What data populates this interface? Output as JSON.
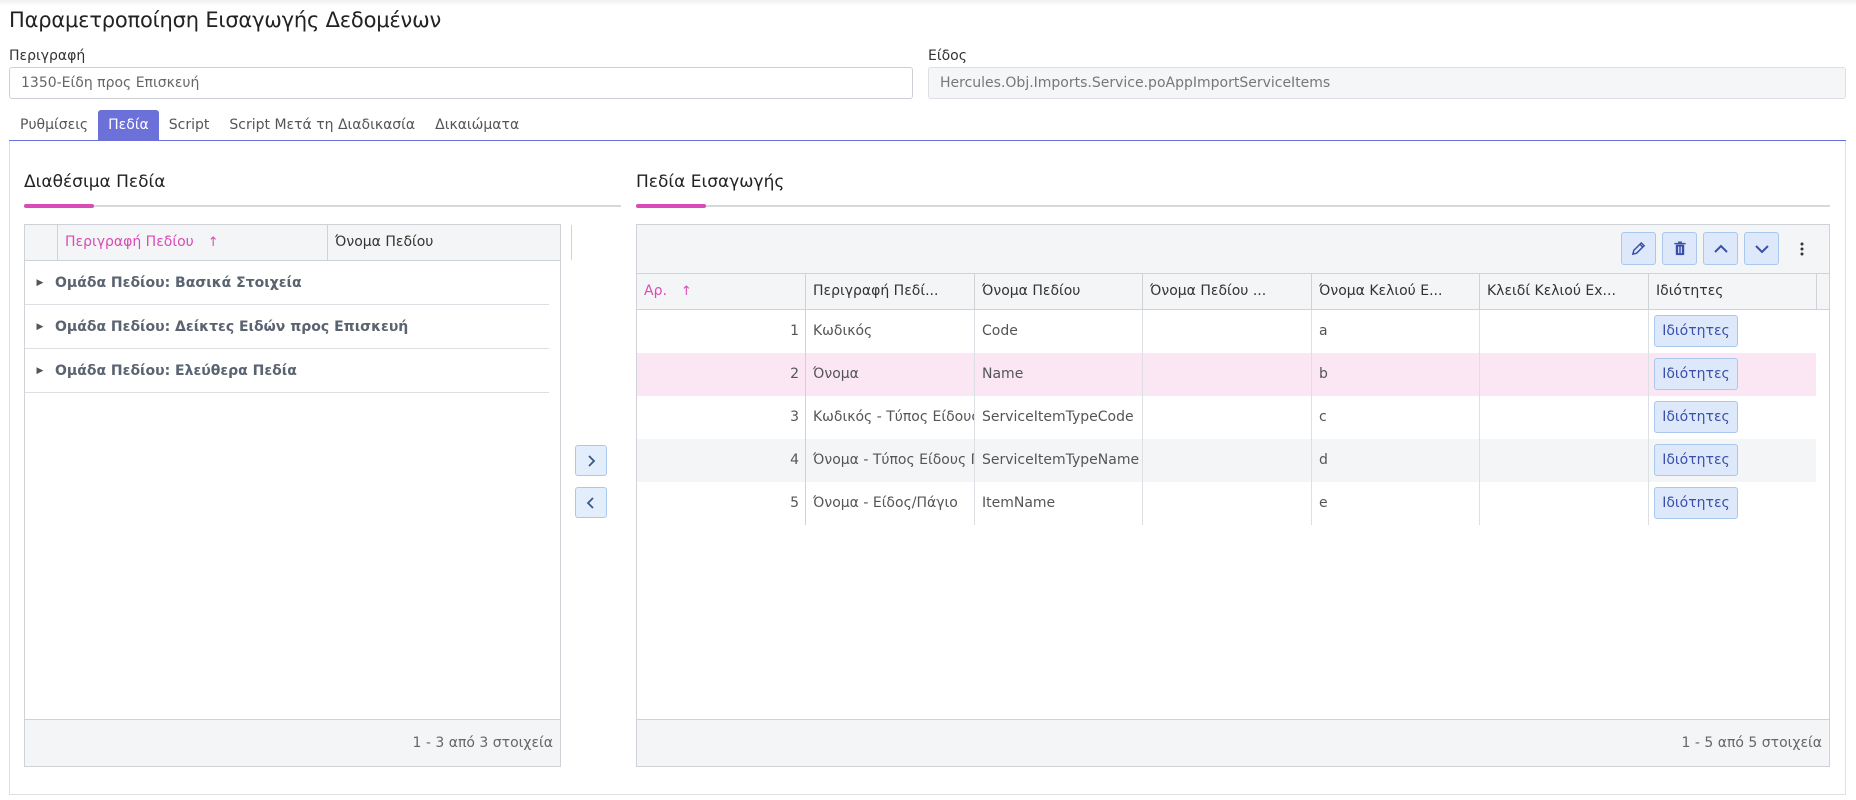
{
  "page": {
    "title": "Παραμετροποίηση Εισαγωγής Δεδομένων"
  },
  "form": {
    "description_label": "Περιγραφή",
    "description_value": "1350-Είδη προς Επισκευή",
    "type_label": "Είδος",
    "type_value": "Hercules.Obj.Imports.Service.poAppImportServiceItems"
  },
  "tabs": [
    {
      "label": "Ρυθμίσεις",
      "active": false
    },
    {
      "label": "Πεδία",
      "active": true
    },
    {
      "label": "Script",
      "active": false
    },
    {
      "label": "Script Μετά τη Διαδικασία",
      "active": false
    },
    {
      "label": "Δικαιώματα",
      "active": false
    }
  ],
  "available": {
    "title": "Διαθέσιμα Πεδία",
    "columns": [
      "Περιγραφή Πεδίου",
      "Όνομα Πεδίου"
    ],
    "sort_arrow": "↑",
    "groups": [
      "Ομάδα Πεδίου: Βασικά Στοιχεία",
      "Ομάδα Πεδίου: Δείκτες Ειδών προς Επισκευή",
      "Ομάδα Πεδίου: Ελεύθερα Πεδία"
    ],
    "footer": "1 - 3 από 3 στοιχεία"
  },
  "imported": {
    "title": "Πεδία Εισαγωγής",
    "columns": [
      "Αρ.",
      "Περιγραφή Πεδί...",
      "Όνομα Πεδίου",
      "Όνομα Πεδίου ...",
      "Όνομα Κελιού Ε...",
      "Κλειδί Κελιού Εx...",
      "Ιδιότητες"
    ],
    "sort_arrow": "↑",
    "rows": [
      {
        "no": "1",
        "desc": "Κωδικός",
        "name": "Code",
        "name2": "",
        "cell": "a",
        "key": "",
        "props": "Ιδιότητες"
      },
      {
        "no": "2",
        "desc": "Όνομα",
        "name": "Name",
        "name2": "",
        "cell": "b",
        "key": "",
        "props": "Ιδιότητες"
      },
      {
        "no": "3",
        "desc": "Κωδικός - Τύπος Είδους Π",
        "name": "ServiceItemTypeCode",
        "name2": "",
        "cell": "c",
        "key": "",
        "props": "Ιδιότητες"
      },
      {
        "no": "4",
        "desc": "Όνομα - Τύπος Είδους Πρ",
        "name": "ServiceItemTypeName",
        "name2": "",
        "cell": "d",
        "key": "",
        "props": "Ιδιότητες"
      },
      {
        "no": "5",
        "desc": "Όνομα - Είδος/Πάγιο",
        "name": "ItemName",
        "name2": "",
        "cell": "e",
        "key": "",
        "props": "Ιδιότητες"
      }
    ],
    "footer": "1 - 5 από 5 στοιχεία",
    "toolbar": [
      "edit-icon",
      "trash-icon",
      "chevron-up-icon",
      "chevron-down-icon",
      "more-vertical-icon"
    ]
  },
  "colors": {
    "accent": "#6b71d9",
    "pink": "#d94bb6",
    "selected_row": "#fbe6f4"
  }
}
